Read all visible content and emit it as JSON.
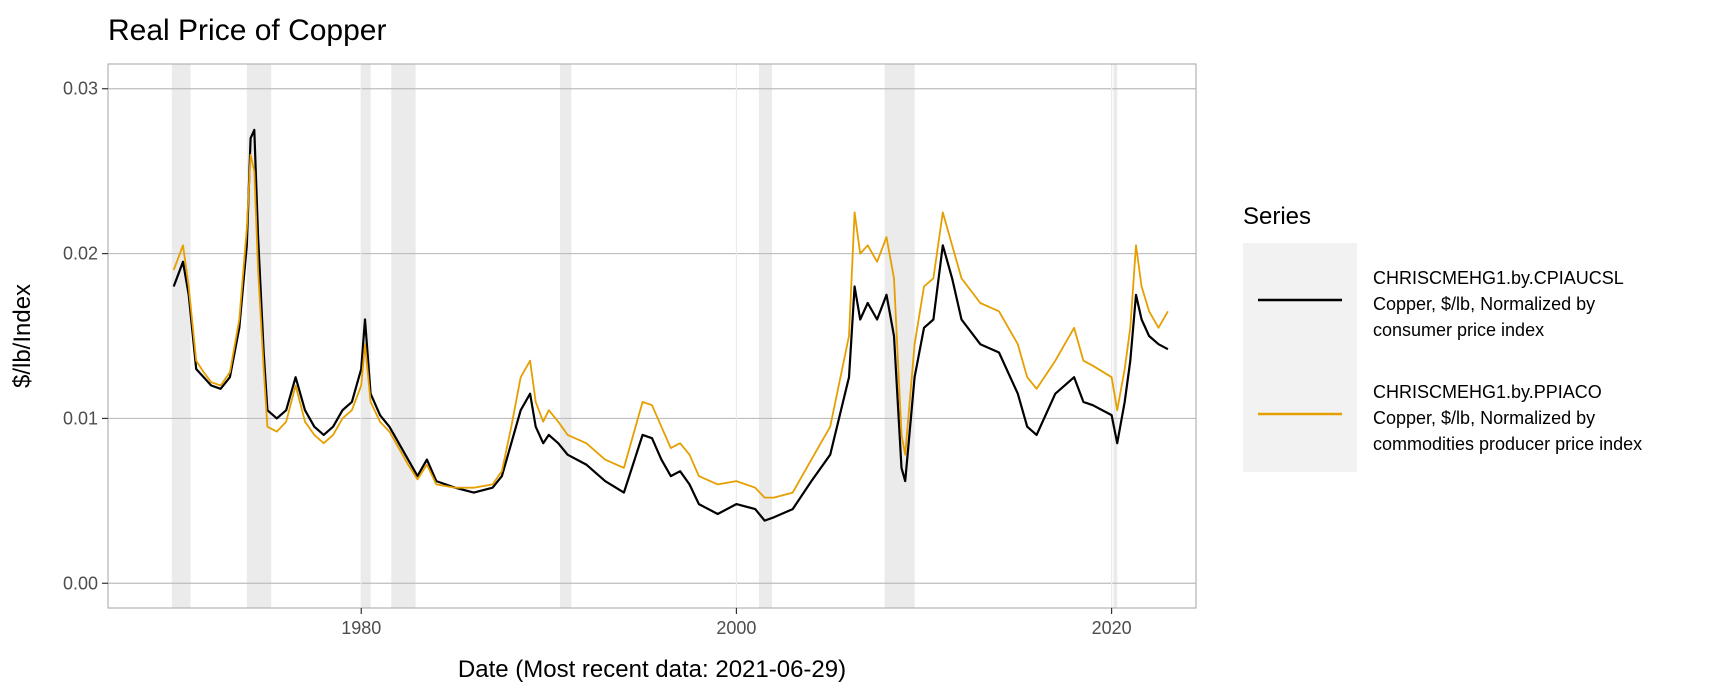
{
  "chart_data": {
    "type": "line",
    "title": "Real Price of Copper",
    "xlabel": "Date (Most recent data: 2021-06-29)",
    "ylabel": "$/lb/Index",
    "xlim": [
      1966.5,
      2024.5
    ],
    "ylim": [
      -0.0015,
      0.0315
    ],
    "x_ticks": [
      1980,
      2000,
      2020
    ],
    "x_tick_labels": [
      "1980",
      "2000",
      "2020"
    ],
    "y_ticks": [
      0.0,
      0.01,
      0.02,
      0.03
    ],
    "y_tick_labels": [
      "0.00",
      "0.01",
      "0.02",
      "0.03"
    ],
    "grid": true,
    "legend": {
      "title": "Series",
      "position": "right",
      "entries": [
        {
          "name": "CHRISCMEHG1.by.CPIAUCSL",
          "description": [
            "Copper, $/lb, Normalized by",
            "consumer price index"
          ],
          "color": "#000000"
        },
        {
          "name": "CHRISCMEHG1.by.PPIACO",
          "description": [
            "Copper, $/lb, Normalized by",
            "commodities producer price index"
          ],
          "color": "#E69F00"
        }
      ]
    },
    "recessions": [
      [
        1969.9,
        1970.9
      ],
      [
        1973.9,
        1975.2
      ],
      [
        1980.0,
        1980.5
      ],
      [
        1981.6,
        1982.9
      ],
      [
        1990.6,
        1991.2
      ],
      [
        2001.2,
        2001.9
      ],
      [
        2007.9,
        2009.5
      ],
      [
        2020.1,
        2020.3
      ]
    ],
    "series": [
      {
        "name": "CHRISCMEHG1.by.CPIAUCSL",
        "color": "#000000",
        "x": [
          1970.0,
          1970.5,
          1970.8,
          1971.2,
          1971.6,
          1972.0,
          1972.5,
          1973.0,
          1973.5,
          1973.9,
          1974.1,
          1974.3,
          1974.5,
          1974.8,
          1975.0,
          1975.5,
          1976.0,
          1976.5,
          1977.0,
          1977.5,
          1978.0,
          1978.5,
          1979.0,
          1979.5,
          1980.0,
          1980.2,
          1980.5,
          1981.0,
          1981.5,
          1982.0,
          1982.5,
          1983.0,
          1983.5,
          1984.0,
          1985.0,
          1986.0,
          1987.0,
          1987.5,
          1988.0,
          1988.5,
          1989.0,
          1989.3,
          1989.7,
          1990.0,
          1990.5,
          1991.0,
          1992.0,
          1993.0,
          1994.0,
          1995.0,
          1995.5,
          1996.0,
          1996.5,
          1997.0,
          1997.5,
          1998.0,
          1999.0,
          2000.0,
          2001.0,
          2001.5,
          2002.0,
          2003.0,
          2004.0,
          2005.0,
          2006.0,
          2006.3,
          2006.6,
          2007.0,
          2007.5,
          2008.0,
          2008.4,
          2008.8,
          2009.0,
          2009.5,
          2010.0,
          2010.5,
          2011.0,
          2011.5,
          2012.0,
          2013.0,
          2014.0,
          2015.0,
          2015.5,
          2016.0,
          2017.0,
          2018.0,
          2018.5,
          2019.0,
          2020.0,
          2020.3,
          2020.7,
          2021.0,
          2021.3,
          2021.6,
          2022.0,
          2022.5,
          2023.0
        ],
        "values": [
          0.018,
          0.0195,
          0.0175,
          0.013,
          0.0125,
          0.012,
          0.0118,
          0.0125,
          0.0155,
          0.0205,
          0.027,
          0.0275,
          0.021,
          0.014,
          0.0105,
          0.01,
          0.0105,
          0.0125,
          0.0105,
          0.0095,
          0.009,
          0.0095,
          0.0105,
          0.011,
          0.013,
          0.016,
          0.0115,
          0.0102,
          0.0095,
          0.0085,
          0.0075,
          0.0065,
          0.0075,
          0.0062,
          0.0058,
          0.0055,
          0.0058,
          0.0065,
          0.0085,
          0.0105,
          0.0115,
          0.0095,
          0.0085,
          0.009,
          0.0085,
          0.0078,
          0.0072,
          0.0062,
          0.0055,
          0.009,
          0.0088,
          0.0075,
          0.0065,
          0.0068,
          0.006,
          0.0048,
          0.0042,
          0.0048,
          0.0045,
          0.0038,
          0.004,
          0.0045,
          0.0062,
          0.0078,
          0.0125,
          0.018,
          0.016,
          0.017,
          0.016,
          0.0175,
          0.015,
          0.007,
          0.0062,
          0.0125,
          0.0155,
          0.016,
          0.0205,
          0.0185,
          0.016,
          0.0145,
          0.014,
          0.0115,
          0.0095,
          0.009,
          0.0115,
          0.0125,
          0.011,
          0.0108,
          0.0102,
          0.0085,
          0.011,
          0.0135,
          0.0175,
          0.016,
          0.015,
          0.0145,
          0.0142
        ]
      },
      {
        "name": "CHRISCMEHG1.by.PPIACO",
        "color": "#E69F00",
        "x": [
          1970.0,
          1970.5,
          1970.8,
          1971.2,
          1971.6,
          1972.0,
          1972.5,
          1973.0,
          1973.5,
          1973.9,
          1974.1,
          1974.3,
          1974.5,
          1974.8,
          1975.0,
          1975.5,
          1976.0,
          1976.5,
          1977.0,
          1977.5,
          1978.0,
          1978.5,
          1979.0,
          1979.5,
          1980.0,
          1980.2,
          1980.5,
          1981.0,
          1981.5,
          1982.0,
          1982.5,
          1983.0,
          1983.5,
          1984.0,
          1985.0,
          1986.0,
          1987.0,
          1987.5,
          1988.0,
          1988.5,
          1989.0,
          1989.3,
          1989.7,
          1990.0,
          1990.5,
          1991.0,
          1992.0,
          1993.0,
          1994.0,
          1995.0,
          1995.5,
          1996.0,
          1996.5,
          1997.0,
          1997.5,
          1998.0,
          1999.0,
          2000.0,
          2001.0,
          2001.5,
          2002.0,
          2003.0,
          2004.0,
          2005.0,
          2006.0,
          2006.3,
          2006.6,
          2007.0,
          2007.5,
          2008.0,
          2008.4,
          2008.8,
          2009.0,
          2009.5,
          2010.0,
          2010.5,
          2011.0,
          2011.5,
          2012.0,
          2013.0,
          2014.0,
          2015.0,
          2015.5,
          2016.0,
          2017.0,
          2018.0,
          2018.5,
          2019.0,
          2020.0,
          2020.3,
          2020.7,
          2021.0,
          2021.3,
          2021.6,
          2022.0,
          2022.5,
          2023.0
        ],
        "values": [
          0.019,
          0.0205,
          0.018,
          0.0135,
          0.0128,
          0.0122,
          0.012,
          0.0128,
          0.016,
          0.0215,
          0.026,
          0.025,
          0.019,
          0.013,
          0.0095,
          0.0092,
          0.0098,
          0.012,
          0.0098,
          0.009,
          0.0085,
          0.009,
          0.01,
          0.0105,
          0.012,
          0.0145,
          0.011,
          0.0098,
          0.0092,
          0.0082,
          0.0072,
          0.0063,
          0.0072,
          0.006,
          0.0058,
          0.0058,
          0.006,
          0.0068,
          0.0095,
          0.0125,
          0.0135,
          0.011,
          0.0098,
          0.0105,
          0.0098,
          0.009,
          0.0085,
          0.0075,
          0.007,
          0.011,
          0.0108,
          0.0095,
          0.0082,
          0.0085,
          0.0078,
          0.0065,
          0.006,
          0.0062,
          0.0058,
          0.0052,
          0.0052,
          0.0055,
          0.0075,
          0.0095,
          0.015,
          0.0225,
          0.02,
          0.0205,
          0.0195,
          0.021,
          0.0185,
          0.009,
          0.0078,
          0.0145,
          0.018,
          0.0185,
          0.0225,
          0.0205,
          0.0185,
          0.017,
          0.0165,
          0.0145,
          0.0125,
          0.0118,
          0.0135,
          0.0155,
          0.0135,
          0.0132,
          0.0125,
          0.0105,
          0.013,
          0.0155,
          0.0205,
          0.018,
          0.0165,
          0.0155,
          0.0165
        ]
      }
    ]
  }
}
